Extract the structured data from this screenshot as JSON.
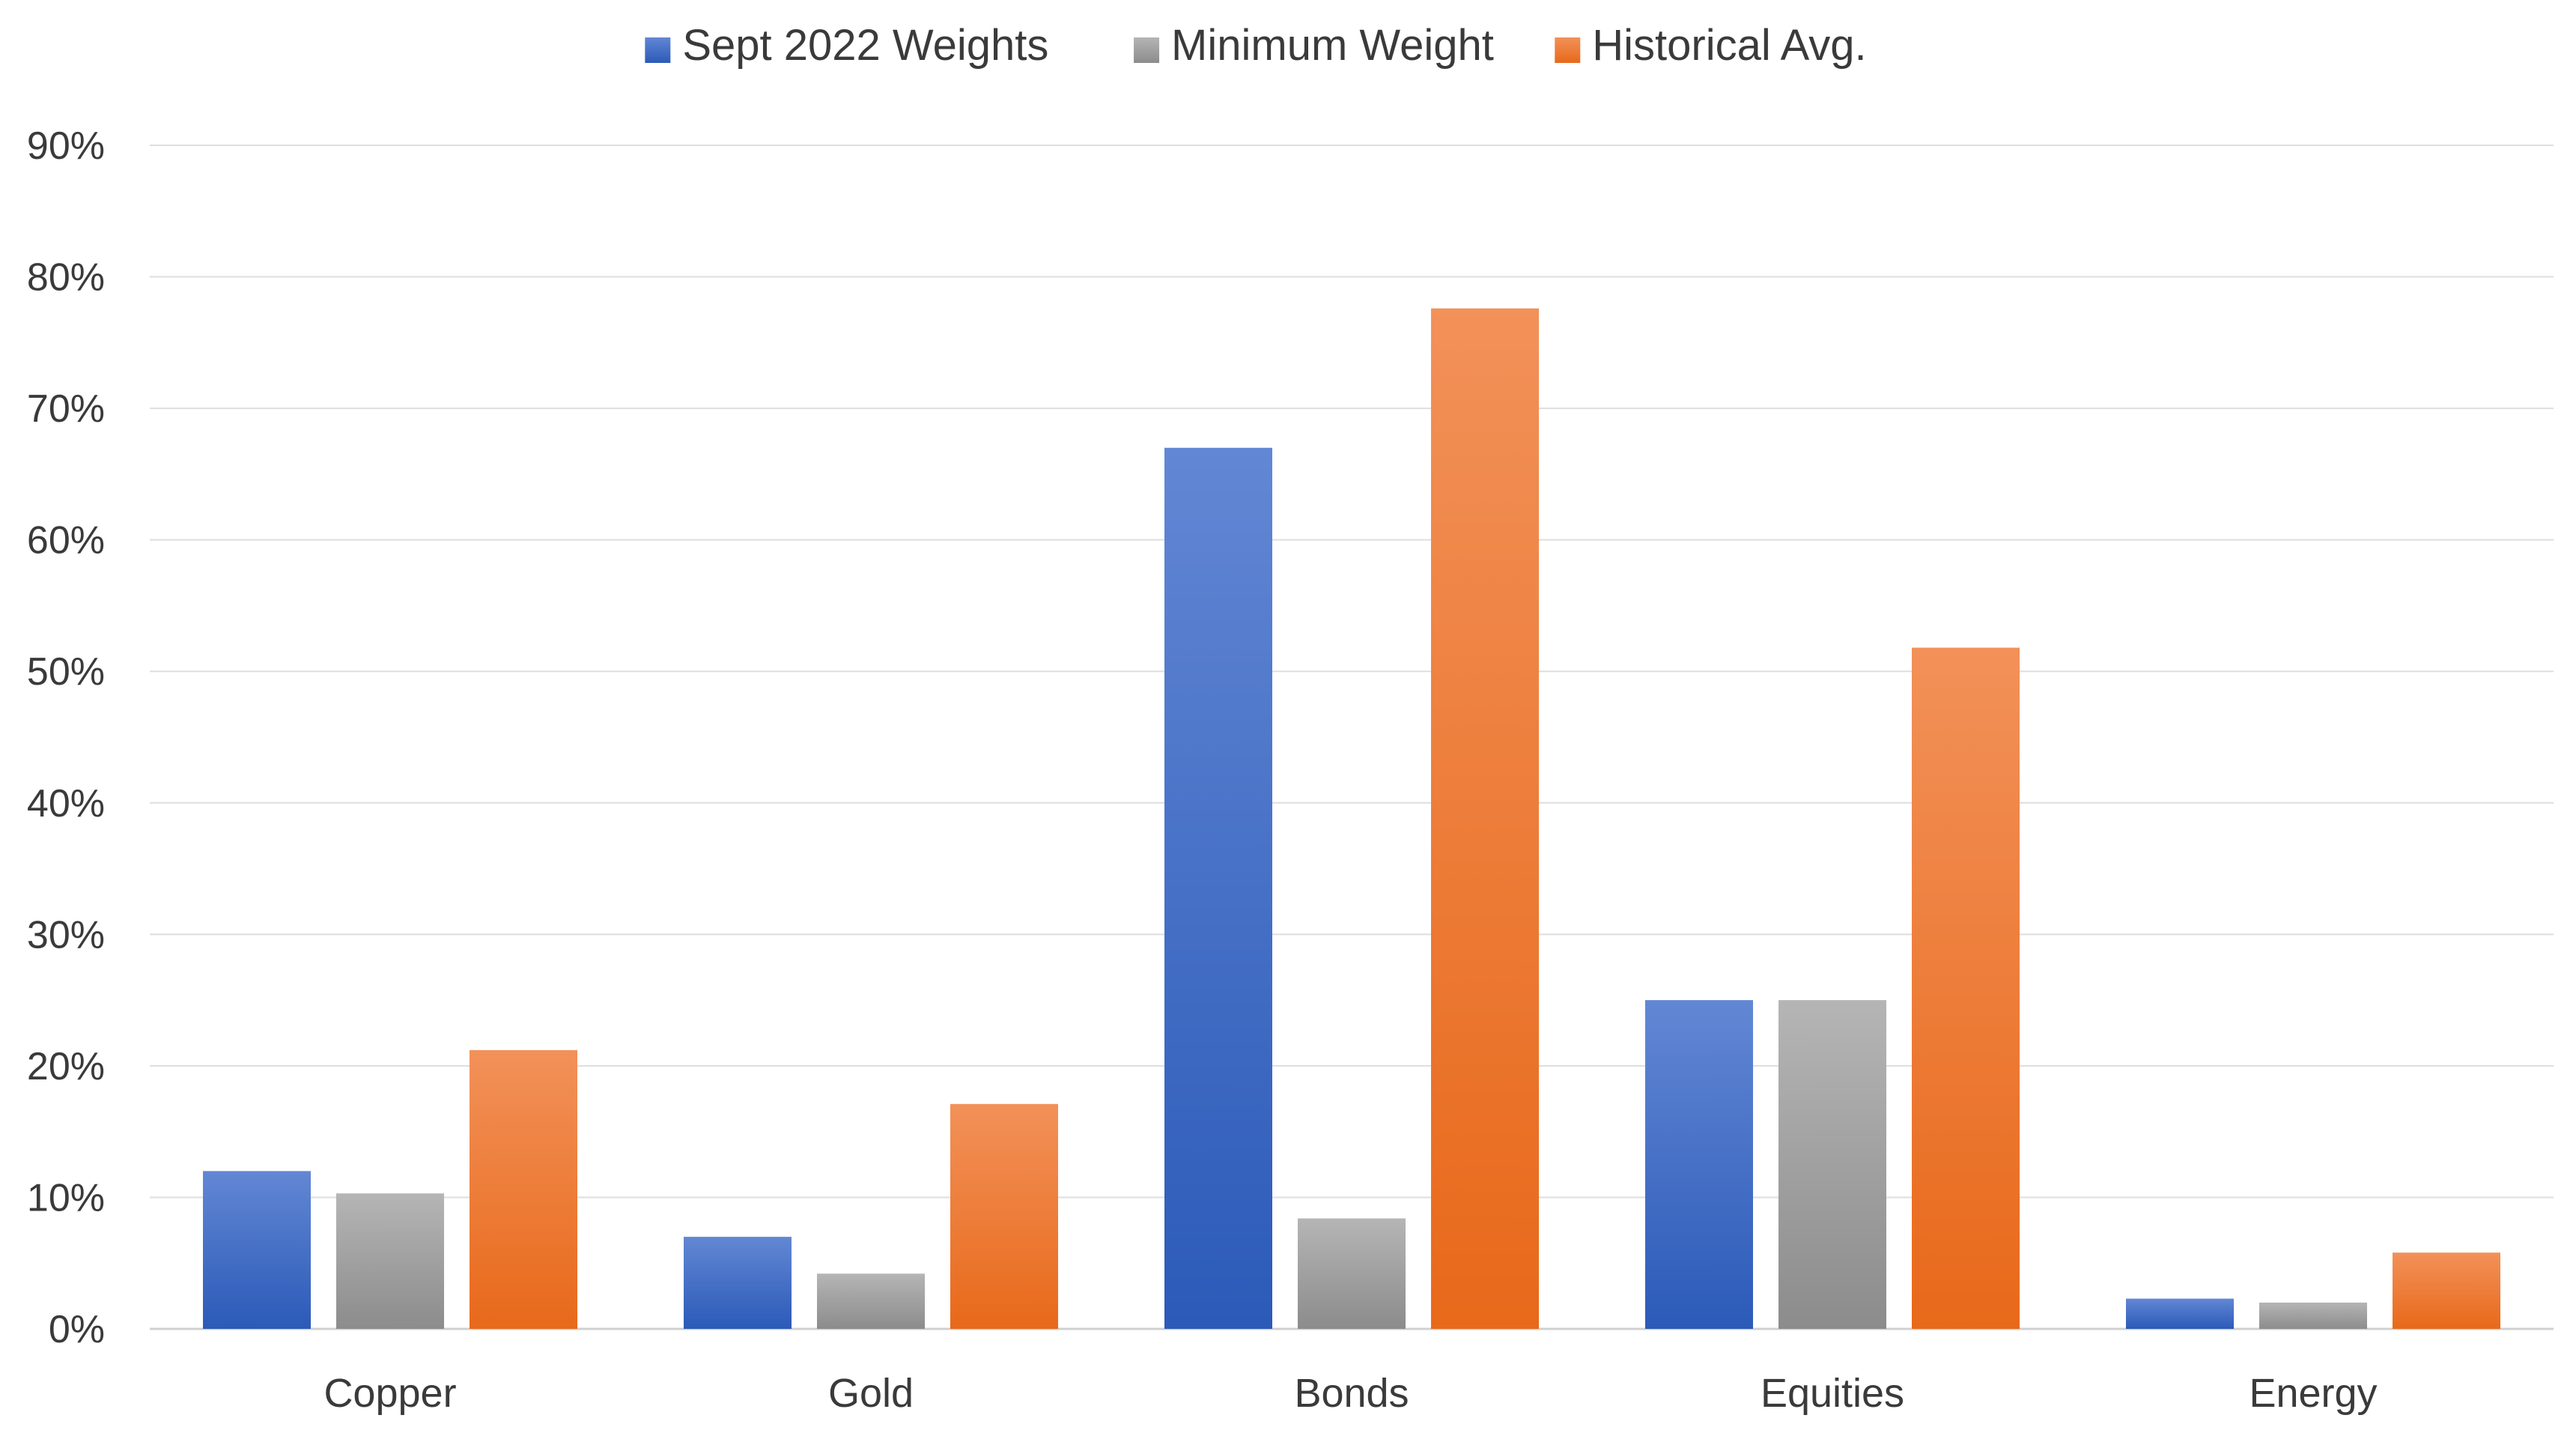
{
  "chart_data": {
    "type": "bar",
    "title": "",
    "xlabel": "",
    "ylabel": "",
    "categories": [
      "Copper",
      "Gold",
      "Bonds",
      "Equities",
      "Energy"
    ],
    "series": [
      {
        "name": "Sept 2022 Weights",
        "values": [
          12,
          7,
          67,
          25,
          2.3
        ],
        "color_top": "#6287d4",
        "color_bottom": "#2b5ab8"
      },
      {
        "name": "Minimum Weight",
        "values": [
          10.3,
          4.2,
          8.4,
          25,
          2
        ],
        "color_top": "#b5b5b5",
        "color_bottom": "#8c8c8c"
      },
      {
        "name": "Historical Avg.",
        "values": [
          21.2,
          17.1,
          77.6,
          51.8,
          5.8
        ],
        "color_top": "#f29159",
        "color_bottom": "#e8691a"
      }
    ],
    "y_ticks": [
      "0%",
      "10%",
      "20%",
      "30%",
      "40%",
      "50%",
      "60%",
      "70%",
      "80%",
      "90%"
    ],
    "ylim": [
      0,
      90
    ],
    "grid": true,
    "legend_position": "top-center"
  }
}
